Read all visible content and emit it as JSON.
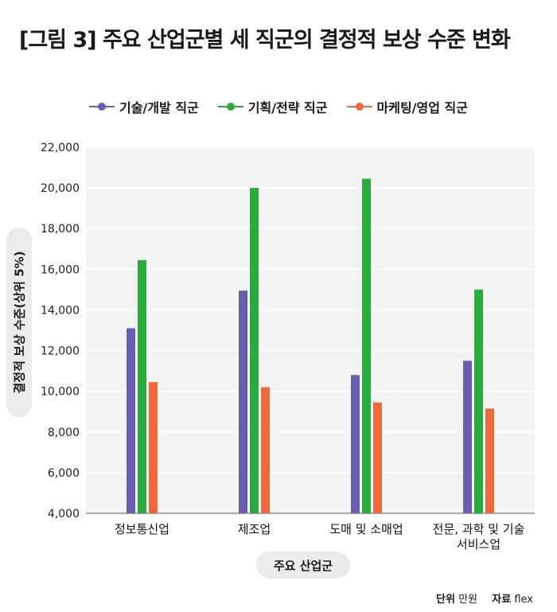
{
  "title": "[그림 3] 주요 산업군별 세 직군의 결정적 보상 수준 변화",
  "colors": {
    "series": [
      "#6b5fad",
      "#2bab3e",
      "#ea6a3d"
    ],
    "plot_bg": "#f3f3f3",
    "grid": "#ffffff",
    "pill_bg": "#ebebeb"
  },
  "chart_data": {
    "type": "bar",
    "title": "[그림 3] 주요 산업군별 세 직군의 결정적 보상 수준 변화",
    "xlabel": "주요 산업군",
    "ylabel": "결정적 보상 수준(상위 5%)",
    "ylim": [
      4000,
      22000
    ],
    "yticks": [
      "4,000",
      "6,000",
      "8,000",
      "10,000",
      "12,000",
      "14,000",
      "16,000",
      "18,000",
      "20,000",
      "22,000"
    ],
    "ytick_values": [
      4000,
      6000,
      8000,
      10000,
      12000,
      14000,
      16000,
      18000,
      20000,
      22000
    ],
    "grid": true,
    "legend_position": "top",
    "categories": [
      "정보통신업",
      "제조업",
      "도매 및 소매업",
      "전문, 과학 및 기술 서비스업"
    ],
    "category_lines": [
      [
        "정보통신업"
      ],
      [
        "제조업"
      ],
      [
        "도매 및 소매업"
      ],
      [
        "전문, 과학 및 기술",
        "서비스업"
      ]
    ],
    "series": [
      {
        "name": "기술/개발 직군",
        "values": [
          13100,
          14950,
          10800,
          11500
        ]
      },
      {
        "name": "기획/전략 직군",
        "values": [
          16450,
          20000,
          20450,
          15000
        ]
      },
      {
        "name": "마케팅/영업 직군",
        "values": [
          10450,
          10200,
          9450,
          9150
        ]
      }
    ]
  },
  "footer": {
    "unit_label": "단위",
    "unit_value": "만원",
    "source_label": "자료",
    "source_value": "flex"
  }
}
